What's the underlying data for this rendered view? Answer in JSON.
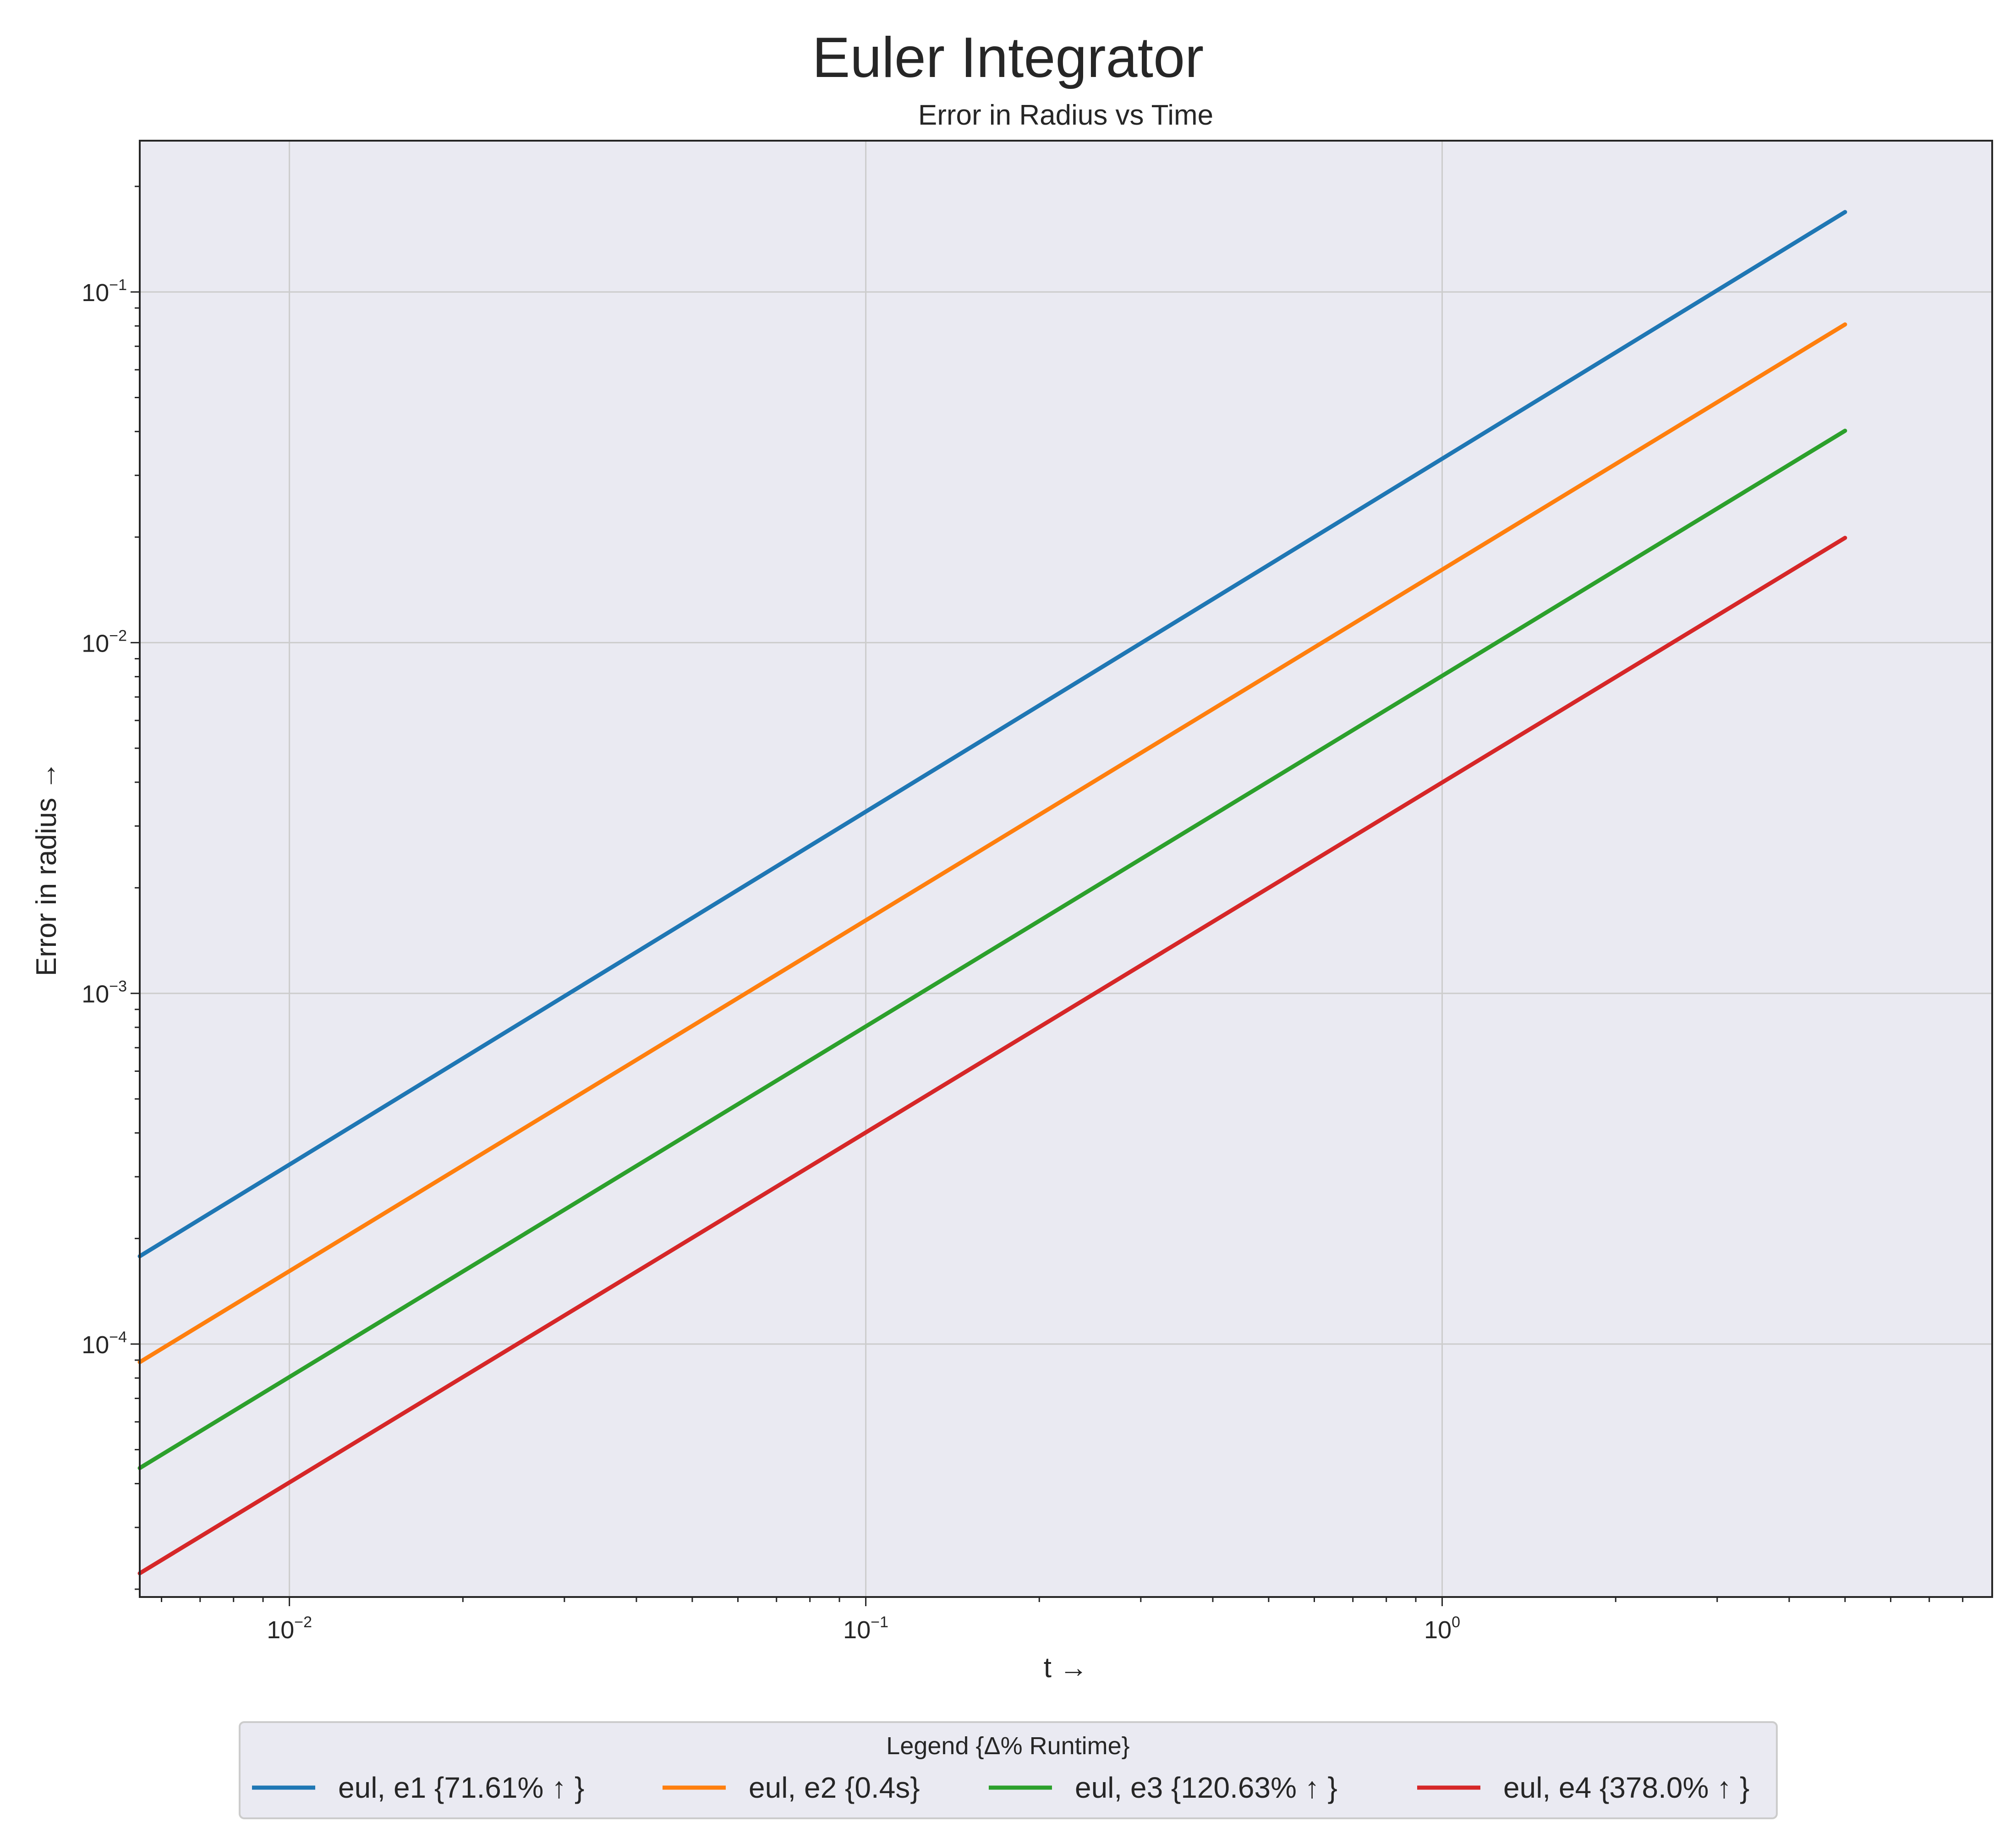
{
  "figure": {
    "suptitle": "Euler Integrator"
  },
  "chart_data": {
    "type": "line",
    "title": "Error in Radius vs Time",
    "xlabel": "t →",
    "ylabel": "Error in radius →",
    "xscale": "log",
    "yscale": "log",
    "xlim": [
      0.0055,
      9
    ],
    "ylim": [
      1.9e-05,
      0.27
    ],
    "grid": true,
    "x_ticks": [
      {
        "value": 0.01,
        "base": "10",
        "exp": "−2"
      },
      {
        "value": 0.1,
        "base": "10",
        "exp": "−1"
      },
      {
        "value": 1,
        "base": "10",
        "exp": "0"
      }
    ],
    "y_ticks": [
      {
        "value": 0.0001,
        "base": "10",
        "exp": "−4"
      },
      {
        "value": 0.001,
        "base": "10",
        "exp": "−3"
      },
      {
        "value": 0.01,
        "base": "10",
        "exp": "−2"
      },
      {
        "value": 0.1,
        "base": "10",
        "exp": "−1"
      }
    ],
    "legend": {
      "title": "Legend {Δ% Runtime}",
      "position": "bottom-center, below axes"
    },
    "series": [
      {
        "name": "eul, e1 {71.61% ↑ }",
        "color": "#1f77b4",
        "x": [
          0.0055,
          5.0
        ],
        "y": [
          0.000178,
          0.169
        ]
      },
      {
        "name": "eul, e2 {0.4s}",
        "color": "#ff7f0e",
        "x": [
          0.0055,
          5.0
        ],
        "y": [
          8.88e-05,
          0.0808
        ]
      },
      {
        "name": "eul, e3 {120.63% ↑ }",
        "color": "#2ca02c",
        "x": [
          0.0055,
          5.0
        ],
        "y": [
          4.43e-05,
          0.0402
        ]
      },
      {
        "name": "eul, e4 {378.0% ↑ }",
        "color": "#d62728",
        "x": [
          0.0055,
          5.0
        ],
        "y": [
          2.22e-05,
          0.0199
        ]
      }
    ]
  }
}
